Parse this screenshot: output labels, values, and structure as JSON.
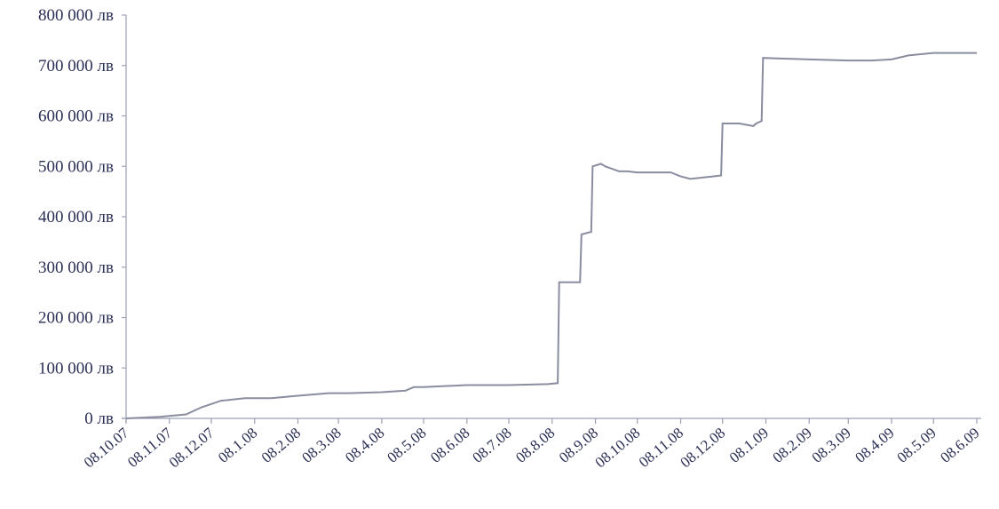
{
  "chart_data": {
    "type": "line",
    "title": "",
    "xlabel": "",
    "ylabel": "",
    "ylim": [
      0,
      800000
    ],
    "y_ticks": [
      0,
      100000,
      200000,
      300000,
      400000,
      500000,
      600000,
      700000,
      800000
    ],
    "y_tick_labels": [
      "0 лв",
      "100 000 лв",
      "200 000 лв",
      "300 000 лв",
      "400 000 лв",
      "500 000 лв",
      "600 000 лв",
      "700 000 лв",
      "800 000 лв"
    ],
    "x_tick_labels": [
      "08.10.07",
      "08.11.07",
      "08.12.07",
      "08.1.08",
      "08.2.08",
      "08.3.08",
      "08.4.08",
      "08.5.08",
      "08.6.08",
      "08.7.08",
      "08.8.08",
      "08.9.08",
      "08.10.08",
      "08.11.08",
      "08.12.08",
      "08.1.09",
      "08.2.09",
      "08.3.09",
      "08.4.09",
      "08.5.09",
      "08.6.09"
    ],
    "grid": false,
    "legend": "none",
    "series": [
      {
        "color": "#8a8da0",
        "x": [
          "2007-10-08",
          "2007-11-01",
          "2007-11-20",
          "2007-12-01",
          "2007-12-15",
          "2008-01-01",
          "2008-01-20",
          "2008-02-08",
          "2008-03-01",
          "2008-03-15",
          "2008-04-08",
          "2008-04-25",
          "2008-05-01",
          "2008-05-08",
          "2008-06-08",
          "2008-07-08",
          "2008-08-05",
          "2008-08-12",
          "2008-08-13",
          "2008-08-28",
          "2008-08-29",
          "2008-09-05",
          "2008-09-06",
          "2008-09-12",
          "2008-09-15",
          "2008-09-20",
          "2008-09-25",
          "2008-10-01",
          "2008-10-08",
          "2008-11-01",
          "2008-11-08",
          "2008-11-15",
          "2008-12-01",
          "2008-12-07",
          "2008-12-08",
          "2008-12-20",
          "2008-12-30",
          "2009-01-01",
          "2009-01-05",
          "2009-01-06",
          "2009-02-08",
          "2009-03-08",
          "2009-03-25",
          "2009-04-08",
          "2009-04-20",
          "2009-05-08",
          "2009-05-20",
          "2009-06-08"
        ],
        "y": [
          0,
          3000,
          8000,
          22000,
          35000,
          40000,
          40000,
          45000,
          50000,
          50000,
          52000,
          55000,
          62000,
          62000,
          66000,
          66000,
          68000,
          70000,
          270000,
          270000,
          365000,
          370000,
          500000,
          505000,
          500000,
          495000,
          490000,
          490000,
          488000,
          488000,
          480000,
          475000,
          480000,
          482000,
          585000,
          585000,
          580000,
          585000,
          590000,
          715000,
          712000,
          710000,
          710000,
          712000,
          720000,
          725000,
          725000,
          725000
        ]
      }
    ]
  }
}
